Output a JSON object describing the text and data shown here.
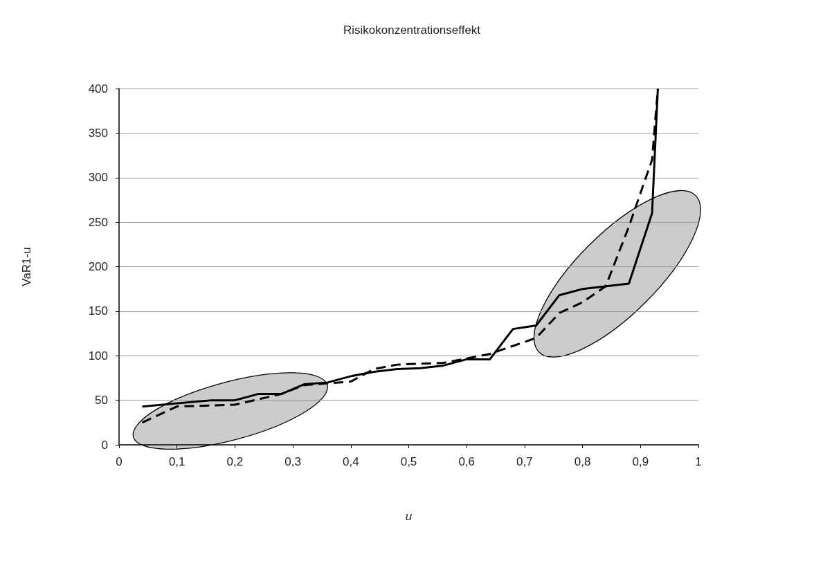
{
  "chart_data": {
    "type": "line",
    "title": "Risikokonzentrationseffekt",
    "xlabel": "u",
    "ylabel": "VaR1-u",
    "xlim": [
      0,
      1
    ],
    "xticks": [
      0,
      {
        "value": 0.1,
        "label": "0,1"
      },
      {
        "value": 0.2,
        "label": "0,2"
      },
      {
        "value": 0.3,
        "label": "0,3"
      },
      {
        "value": 0.4,
        "label": "0,4"
      },
      {
        "value": 0.5,
        "label": "0,5"
      },
      {
        "value": 0.6,
        "label": "0,6"
      },
      {
        "value": 0.7,
        "label": "0,7"
      },
      {
        "value": 0.8,
        "label": "0,8"
      },
      {
        "value": 0.9,
        "label": "0,9"
      },
      1
    ],
    "ylim": [
      0,
      400
    ],
    "yticks": [
      0,
      50,
      100,
      150,
      200,
      250,
      300,
      350,
      400
    ],
    "grid": "y",
    "marker": "none",
    "series": [
      {
        "color": "#000000",
        "line_style": "solid",
        "x": [
          0.04,
          0.16,
          0.2,
          0.24,
          0.28,
          0.32,
          0.36,
          0.4,
          0.44,
          0.48,
          0.52,
          0.56,
          0.6,
          0.64,
          0.68,
          0.72,
          0.76,
          0.8,
          0.88,
          0.92,
          0.93
        ],
        "values": [
          43,
          50,
          50,
          57,
          57,
          68,
          70,
          77,
          82,
          85,
          86,
          89,
          96,
          96,
          130,
          134,
          168,
          175,
          181,
          260,
          400
        ]
      },
      {
        "color": "#000000",
        "line_style": "dashed",
        "x": [
          0.04,
          0.1,
          0.2,
          0.28,
          0.32,
          0.4,
          0.44,
          0.48,
          0.56,
          0.6,
          0.64,
          0.72,
          0.76,
          0.8,
          0.84,
          0.88,
          0.92,
          0.93
        ],
        "values": [
          25,
          43,
          45,
          57,
          67,
          71,
          85,
          90,
          92,
          97,
          102,
          120,
          148,
          160,
          178,
          245,
          320,
          400
        ]
      }
    ]
  }
}
